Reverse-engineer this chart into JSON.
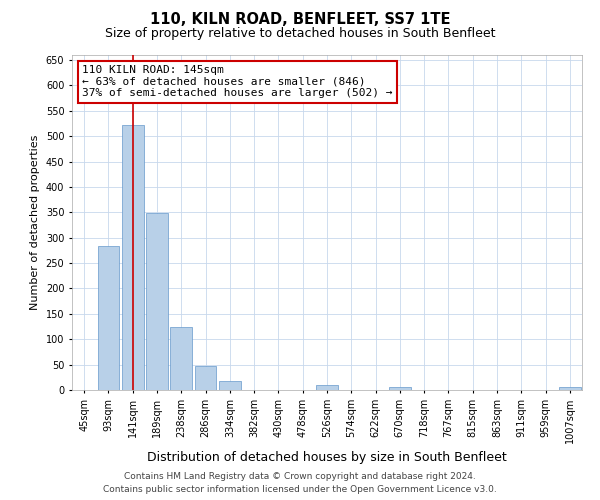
{
  "title": "110, KILN ROAD, BENFLEET, SS7 1TE",
  "subtitle": "Size of property relative to detached houses in South Benfleet",
  "xlabel": "Distribution of detached houses by size in South Benfleet",
  "ylabel": "Number of detached properties",
  "categories": [
    "45sqm",
    "93sqm",
    "141sqm",
    "189sqm",
    "238sqm",
    "286sqm",
    "334sqm",
    "382sqm",
    "430sqm",
    "478sqm",
    "526sqm",
    "574sqm",
    "622sqm",
    "670sqm",
    "718sqm",
    "767sqm",
    "815sqm",
    "863sqm",
    "911sqm",
    "959sqm",
    "1007sqm"
  ],
  "values": [
    0,
    283,
    523,
    348,
    124,
    48,
    18,
    0,
    0,
    0,
    9,
    0,
    0,
    5,
    0,
    0,
    0,
    0,
    0,
    0,
    5
  ],
  "bar_color": "#b8d0e8",
  "bar_edge_color": "#6699cc",
  "vline_x_index": 2,
  "vline_color": "#cc0000",
  "annotation_line1": "110 KILN ROAD: 145sqm",
  "annotation_line2": "← 63% of detached houses are smaller (846)",
  "annotation_line3": "37% of semi-detached houses are larger (502) →",
  "annotation_box_color": "#ffffff",
  "annotation_box_edge": "#cc0000",
  "ylim": [
    0,
    660
  ],
  "yticks": [
    0,
    50,
    100,
    150,
    200,
    250,
    300,
    350,
    400,
    450,
    500,
    550,
    600,
    650
  ],
  "footer_line1": "Contains HM Land Registry data © Crown copyright and database right 2024.",
  "footer_line2": "Contains public sector information licensed under the Open Government Licence v3.0.",
  "bg_color": "#ffffff",
  "grid_color": "#c8d8ec",
  "title_fontsize": 10.5,
  "subtitle_fontsize": 9,
  "xlabel_fontsize": 9,
  "ylabel_fontsize": 8,
  "tick_fontsize": 7,
  "annotation_fontsize": 8,
  "footer_fontsize": 6.5
}
